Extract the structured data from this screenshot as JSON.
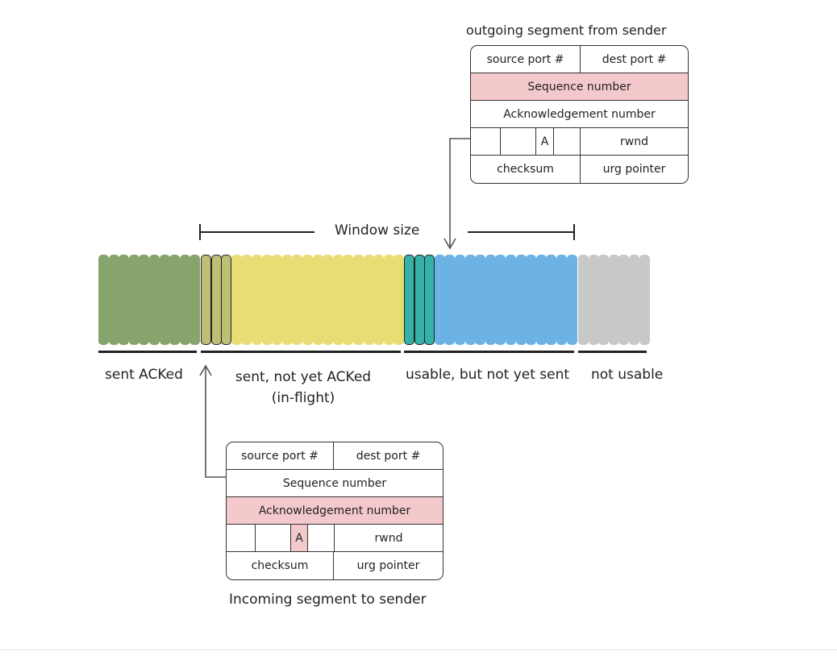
{
  "outgoing": {
    "title": "outgoing segment from sender",
    "source_port": "source port #",
    "dest_port": "dest port #",
    "sequence": "Sequence number",
    "ack": "Acknowledgement number",
    "flag": "A",
    "rwnd": "rwnd",
    "checksum": "checksum",
    "urg": "urg pointer",
    "highlight": "sequence"
  },
  "incoming": {
    "title": "Incoming segment to sender",
    "source_port": "source port #",
    "dest_port": "dest port #",
    "sequence": "Sequence number",
    "ack": "Acknowledgement number",
    "flag": "A",
    "rwnd": "rwnd",
    "checksum": "checksum",
    "urg": "urg pointer",
    "highlight": "ack"
  },
  "window": {
    "label": "Window size"
  },
  "groups": [
    {
      "name": "sent-acked",
      "label": "sent ACKed",
      "color": "#86a46c",
      "count": 10,
      "outlined": 0
    },
    {
      "name": "sent-not-acked",
      "label": "sent, not yet ACKed\n(in-flight)",
      "color_outlined": "#bcbf74",
      "color": "#e8dd74",
      "count": 20,
      "outlined": 3
    },
    {
      "name": "usable-not-sent",
      "label": "usable, but not yet sent",
      "color_outlined": "#35b1a8",
      "color": "#6cb2e4",
      "count": 17,
      "outlined": 3
    },
    {
      "name": "not-usable",
      "label": "not usable",
      "color": "#c8c8c8",
      "count": 7,
      "outlined": 0
    }
  ]
}
